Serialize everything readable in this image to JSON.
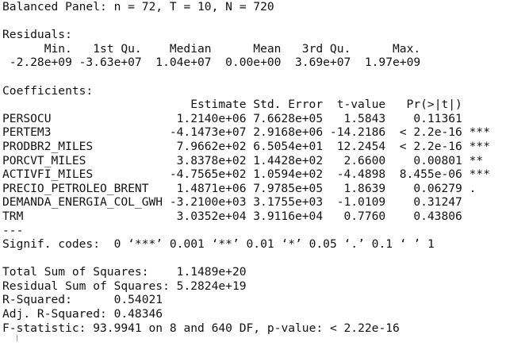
{
  "panel_line": "Balanced Panel: n = 72, T = 10, N = 720",
  "residuals": {
    "title": "Residuals:",
    "headers": [
      "Min.",
      "1st Qu.",
      "Median",
      "Mean",
      "3rd Qu.",
      "Max."
    ],
    "values": [
      "-2.28e+09",
      "-3.63e+07",
      "1.04e+07",
      "0.00e+00",
      "3.69e+07",
      "1.97e+09"
    ]
  },
  "coefficients": {
    "title": "Coefficients:",
    "headers": [
      "Estimate",
      "Std. Error",
      "t-value",
      "Pr(>|t|)"
    ],
    "rows": [
      {
        "name": "PERSOCU",
        "estimate": "1.2140e+06",
        "std_error": "7.6628e+05",
        "t_value": "1.5843",
        "p_value": "0.11361",
        "signif": ""
      },
      {
        "name": "PERTEM3",
        "estimate": "-4.1473e+07",
        "std_error": "2.9168e+06",
        "t_value": "-14.2186",
        "p_value": "< 2.2e-16",
        "signif": "***"
      },
      {
        "name": "PRODBR2_MILES",
        "estimate": "7.9662e+02",
        "std_error": "6.5054e+01",
        "t_value": "12.2454",
        "p_value": "< 2.2e-16",
        "signif": "***"
      },
      {
        "name": "PORCVT_MILES",
        "estimate": "3.8378e+02",
        "std_error": "1.4428e+02",
        "t_value": "2.6600",
        "p_value": "0.00801",
        "signif": "**"
      },
      {
        "name": "ACTIVFI_MILES",
        "estimate": "-4.7565e+02",
        "std_error": "1.0594e+02",
        "t_value": "-4.4898",
        "p_value": "8.455e-06",
        "signif": "***"
      },
      {
        "name": "PRECIO_PETROLEO_BRENT",
        "estimate": "1.4871e+06",
        "std_error": "7.9785e+05",
        "t_value": "1.8639",
        "p_value": "0.06279",
        "signif": "."
      },
      {
        "name": "DEMANDA_ENERGIA_COL_GWH",
        "estimate": "-3.2100e+03",
        "std_error": "3.1755e+03",
        "t_value": "-1.0109",
        "p_value": "0.31247",
        "signif": ""
      },
      {
        "name": "TRM",
        "estimate": "3.0352e+04",
        "std_error": "3.9116e+04",
        "t_value": "0.7760",
        "p_value": "0.43806",
        "signif": ""
      }
    ],
    "separator": "---",
    "signif_codes": "Signif. codes:  0 ‘***’ 0.001 ‘**’ 0.01 ‘*’ 0.05 ‘.’ 0.1 ‘ ’ 1"
  },
  "summary": {
    "tss": "Total Sum of Squares:    1.1489e+20",
    "rss": "Residual Sum of Squares: 5.2824e+19",
    "r2": "R-Squared:      0.54021",
    "adj_r2": "Adj. R-Squared: 0.48346",
    "f_stat": "F-statistic: 93.9941 on 8 and 640 DF, p-value: < 2.22e-16"
  }
}
